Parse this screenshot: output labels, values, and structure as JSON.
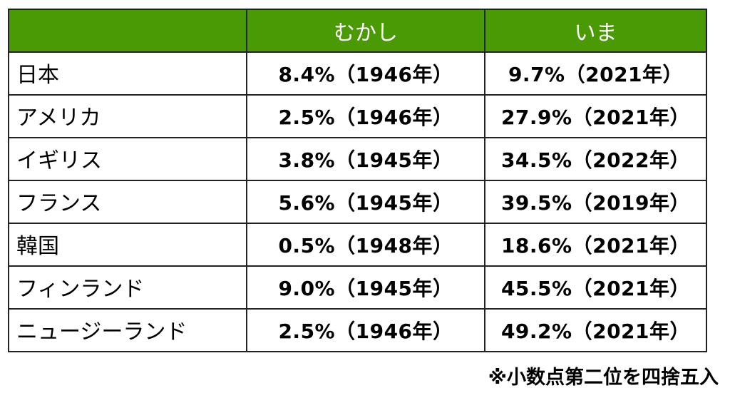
{
  "colors": {
    "header_bg": "#4a9a06",
    "header_text": "#ffffff",
    "border": "#222222"
  },
  "table": {
    "headers": [
      "",
      "むかし",
      "いま"
    ],
    "rows": [
      {
        "country": "日本",
        "past": "8.4%（1946年）",
        "now": "9.7%（2021年）"
      },
      {
        "country": "アメリカ",
        "past": "2.5%（1946年）",
        "now": "27.9%（2021年）"
      },
      {
        "country": "イギリス",
        "past": "3.8%（1945年）",
        "now": "34.5%（2022年）"
      },
      {
        "country": "フランス",
        "past": "5.6%（1945年）",
        "now": "39.5%（2019年）"
      },
      {
        "country": "韓国",
        "past": "0.5%（1948年）",
        "now": "18.6%（2021年）"
      },
      {
        "country": "フィンランド",
        "past": "9.0%（1945年）",
        "now": "45.5%（2021年）"
      },
      {
        "country": "ニュージーランド",
        "past": "2.5%（1946年）",
        "now": "49.2%（2021年）"
      }
    ]
  },
  "note": "※小数点第二位を四捨五入"
}
